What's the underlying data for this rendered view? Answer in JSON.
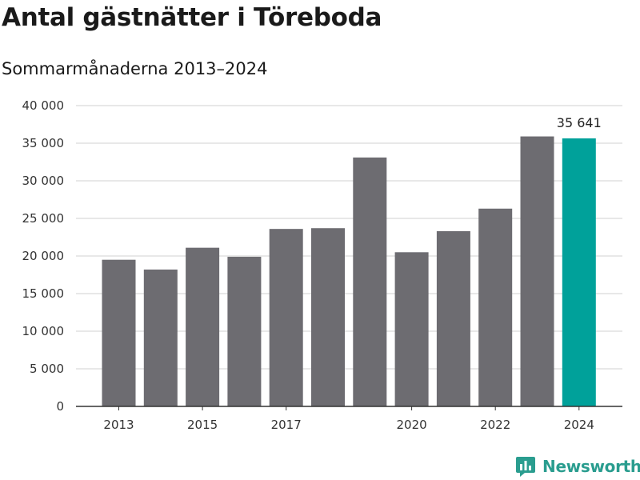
{
  "title": "Antal gästnätter i Töreboda",
  "subtitle": "Sommarmånaderna 2013–2024",
  "brand": {
    "name": "Newsworthy",
    "icon": "newsworthy-logo-icon"
  },
  "colors": {
    "bar": "#6d6c71",
    "highlight": "#00a19a",
    "grid": "#e0e0e0",
    "axis": "#333333",
    "brand": "#2a9d8f"
  },
  "chart_data": {
    "type": "bar",
    "title": "Antal gästnätter i Töreboda",
    "subtitle": "Sommarmånaderna 2013–2024",
    "xlabel": "",
    "ylabel": "",
    "categories": [
      "2013",
      "2014",
      "2015",
      "2016",
      "2017",
      "2018",
      "2019",
      "2020",
      "2021",
      "2022",
      "2023",
      "2024"
    ],
    "values": [
      19500,
      18200,
      21100,
      19900,
      23600,
      23700,
      33100,
      20500,
      23300,
      26300,
      35900,
      35641
    ],
    "ylim": [
      0,
      40000
    ],
    "yticks": [
      0,
      5000,
      10000,
      15000,
      20000,
      25000,
      30000,
      35000,
      40000
    ],
    "ytick_labels": [
      "0",
      "5 000",
      "10 000",
      "15 000",
      "20 000",
      "25 000",
      "30 000",
      "35 000",
      "40 000"
    ],
    "xtick_labels": [
      "2013",
      "2015",
      "2017",
      "2020",
      "2022",
      "2024"
    ],
    "highlight_index": 11,
    "data_labels": [
      {
        "index": 11,
        "text": "35 641"
      }
    ],
    "grid": true,
    "legend": "none"
  }
}
